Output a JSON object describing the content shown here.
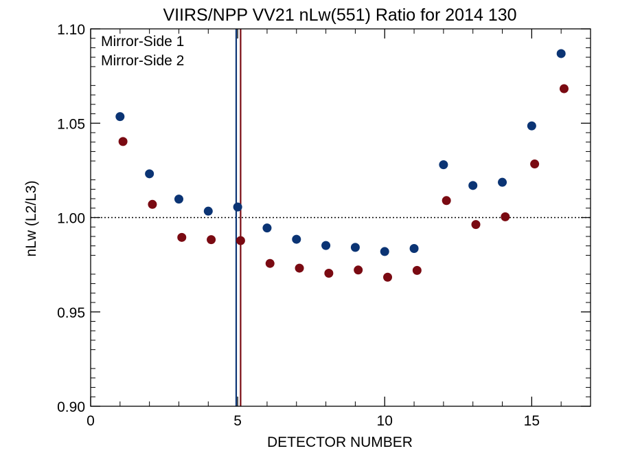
{
  "chart_data": {
    "type": "scatter",
    "title": "VIIRS/NPP VV21 nLw(551) Ratio for 2014 130",
    "xlabel": "DETECTOR NUMBER",
    "ylabel": "nLw (L2/L3)",
    "xlim": [
      0,
      17
    ],
    "ylim": [
      0.9,
      1.1
    ],
    "xticks": [
      "0",
      "5",
      "10",
      "15"
    ],
    "xtick_values": [
      0,
      5,
      10,
      15
    ],
    "yticks": [
      "0.90",
      "0.95",
      "1.00",
      "1.05",
      "1.10"
    ],
    "ytick_values": [
      0.9,
      0.95,
      1.0,
      1.05,
      1.1
    ],
    "grid": false,
    "legend_position": "top-left",
    "reference_line": {
      "y": 1.0,
      "style": "dotted"
    },
    "series": [
      {
        "name": "Mirror-Side 1",
        "color": "#0b3474",
        "marker_line_x": 4.95,
        "x": [
          1,
          2,
          3,
          4,
          5,
          6,
          7,
          8,
          9,
          10,
          11,
          12,
          13,
          14,
          15,
          16
        ],
        "y": [
          1.0535,
          1.0232,
          1.0098,
          1.0034,
          1.0056,
          0.9945,
          0.9885,
          0.9852,
          0.9842,
          0.982,
          0.9836,
          1.028,
          1.017,
          1.0187,
          1.0486,
          1.0869
        ]
      },
      {
        "name": "Mirror-Side 2",
        "color": "#7a0a12",
        "marker_line_x": 5.1,
        "x": [
          1.1,
          2.1,
          3.1,
          4.1,
          5.1,
          6.1,
          7.1,
          8.1,
          9.1,
          10.1,
          11.1,
          12.1,
          13.1,
          14.1,
          15.1,
          16.1
        ],
        "y": [
          1.0403,
          1.007,
          0.9895,
          0.9883,
          0.9878,
          0.9757,
          0.9732,
          0.9705,
          0.9722,
          0.9684,
          0.972,
          1.009,
          0.9963,
          1.0004,
          1.0284,
          1.0683
        ]
      }
    ]
  }
}
